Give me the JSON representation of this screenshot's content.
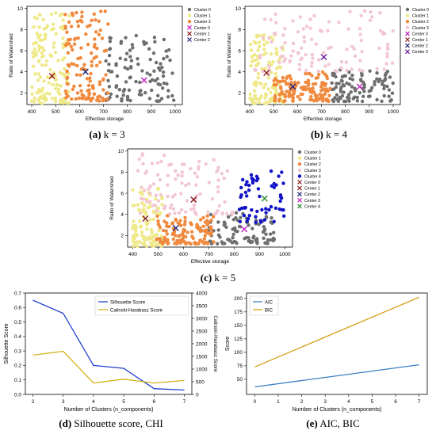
{
  "captions": [
    {
      "letter": "(a)",
      "text": " k = 3"
    },
    {
      "letter": "(b)",
      "text": " k = 4"
    },
    {
      "letter": "(c)",
      "text": " k = 5"
    },
    {
      "letter": "(d)",
      "text": " Silhouette score, CHI"
    },
    {
      "letter": "(e)",
      "text": " AIC, BIC"
    }
  ],
  "colors": {
    "cluster_grey": "#6e6e6e",
    "cluster_yellow": "#efe98a",
    "cluster_orange": "#f08a3e",
    "cluster_pink": "#f2c7d3",
    "cluster_blue": "#1212c8",
    "center_magenta": "#c21fc2",
    "center_brown": "#8b1a1a",
    "center_purple": "#6a1a9a",
    "center_navy": "#22227a",
    "center_green": "#2a8a2a",
    "line_blue": "#1f3fd0",
    "line_gold": "#d4b21c",
    "aic_blue": "#3a7fc4",
    "bic_gold": "#d4a017"
  },
  "chart_data": [
    {
      "id": "k3",
      "type": "scatter",
      "xlabel": "Effective storage",
      "ylabel": "Ratio of Watershed",
      "xlim": [
        380,
        1030
      ],
      "ylim": [
        0.9,
        10.2
      ],
      "xticks": [
        400,
        500,
        600,
        700,
        800,
        900,
        1000
      ],
      "yticks": [
        2,
        4,
        6,
        8,
        10
      ],
      "legend": [
        "Cluster 0",
        "Cluster 1",
        "Cluster 2",
        "Center 0",
        "Center 1",
        "Center 2"
      ],
      "legend_position": "right",
      "clusters": [
        {
          "name": "Cluster 0",
          "color": "cluster_grey",
          "xr": [
            700,
            1000
          ],
          "yr": [
            1.2,
            7.5
          ],
          "n": 110,
          "seed": 11
        },
        {
          "name": "Cluster 1",
          "color": "cluster_yellow",
          "xr": [
            400,
            560
          ],
          "yr": [
            1.0,
            9.6
          ],
          "n": 150,
          "seed": 12
        },
        {
          "name": "Cluster 2",
          "color": "cluster_orange",
          "xr": [
            540,
            720
          ],
          "yr": [
            1.2,
            9.8
          ],
          "n": 130,
          "seed": 13
        }
      ],
      "centers": [
        {
          "name": "Center 0",
          "x": 870,
          "y": 3.2,
          "color": "center_magenta"
        },
        {
          "name": "Center 1",
          "x": 485,
          "y": 3.6,
          "color": "center_brown"
        },
        {
          "name": "Center 2",
          "x": 625,
          "y": 4.0,
          "color": "center_navy"
        }
      ]
    },
    {
      "id": "k4",
      "type": "scatter",
      "xlabel": "Effective storage",
      "ylabel": "Ratio of Watershed",
      "xlim": [
        380,
        1030
      ],
      "ylim": [
        0.9,
        10.2
      ],
      "xticks": [
        400,
        500,
        600,
        700,
        800,
        900,
        1000
      ],
      "yticks": [
        2,
        4,
        6,
        8,
        10
      ],
      "legend": [
        "Cluster 0",
        "Cluster 1",
        "Cluster 2",
        "Cluster 3",
        "Center 0",
        "Center 1",
        "Center 2",
        "Center 3"
      ],
      "legend_position": "right",
      "clusters": [
        {
          "name": "Cluster 0",
          "color": "cluster_grey",
          "xr": [
            740,
            1000
          ],
          "yr": [
            1.2,
            4.2
          ],
          "n": 100,
          "seed": 21
        },
        {
          "name": "Cluster 1",
          "color": "cluster_yellow",
          "xr": [
            400,
            540
          ],
          "yr": [
            1.0,
            7.5
          ],
          "n": 120,
          "seed": 22
        },
        {
          "name": "Cluster 2",
          "color": "cluster_orange",
          "xr": [
            500,
            740
          ],
          "yr": [
            1.2,
            4.0
          ],
          "n": 130,
          "seed": 23
        },
        {
          "name": "Cluster 3",
          "color": "cluster_pink",
          "xr": [
            420,
            1000
          ],
          "yr": [
            4.0,
            9.8
          ],
          "n": 110,
          "seed": 24
        }
      ],
      "centers": [
        {
          "name": "Center 0",
          "x": 860,
          "y": 2.6,
          "color": "center_magenta"
        },
        {
          "name": "Center 1",
          "x": 470,
          "y": 3.9,
          "color": "center_brown"
        },
        {
          "name": "Center 2",
          "x": 580,
          "y": 2.6,
          "color": "center_navy"
        },
        {
          "name": "Center 3",
          "x": 710,
          "y": 5.4,
          "color": "center_purple"
        }
      ]
    },
    {
      "id": "k5",
      "type": "scatter",
      "xlabel": "Effective storage",
      "ylabel": "Ratio of Watershed",
      "xlim": [
        380,
        1030
      ],
      "ylim": [
        0.9,
        10.2
      ],
      "xticks": [
        400,
        500,
        600,
        700,
        800,
        900,
        1000
      ],
      "yticks": [
        2,
        4,
        6,
        8,
        10
      ],
      "legend": [
        "Cluster 0",
        "Cluster 1",
        "Cluster 2",
        "Cluster 3",
        "Cluster 4",
        "Center 0",
        "Center 1",
        "Center 2",
        "Center 3",
        "Center 4"
      ],
      "legend_position": "right",
      "clusters": [
        {
          "name": "Cluster 0",
          "color": "cluster_grey",
          "xr": [
            700,
            960
          ],
          "yr": [
            1.2,
            4.2
          ],
          "n": 95,
          "seed": 31
        },
        {
          "name": "Cluster 1",
          "color": "cluster_yellow",
          "xr": [
            400,
            520
          ],
          "yr": [
            1.0,
            6.5
          ],
          "n": 110,
          "seed": 32
        },
        {
          "name": "Cluster 2",
          "color": "cluster_orange",
          "xr": [
            490,
            720
          ],
          "yr": [
            1.2,
            4.0
          ],
          "n": 130,
          "seed": 33
        },
        {
          "name": "Cluster 3",
          "color": "cluster_pink",
          "xr": [
            420,
            800
          ],
          "yr": [
            4.0,
            9.8
          ],
          "n": 100,
          "seed": 34
        },
        {
          "name": "Cluster 4",
          "color": "cluster_blue",
          "xr": [
            820,
            1000
          ],
          "yr": [
            3.2,
            8.2
          ],
          "n": 60,
          "seed": 35
        }
      ],
      "centers": [
        {
          "name": "Center 0",
          "x": 450,
          "y": 3.6,
          "color": "center_brown"
        },
        {
          "name": "Center 1",
          "x": 640,
          "y": 5.4,
          "color": "center_brown"
        },
        {
          "name": "Center 2",
          "x": 570,
          "y": 2.7,
          "color": "center_navy"
        },
        {
          "name": "Center 3",
          "x": 840,
          "y": 2.6,
          "color": "center_magenta"
        },
        {
          "name": "Center 4",
          "x": 920,
          "y": 5.5,
          "color": "center_green"
        }
      ]
    },
    {
      "id": "silhouette",
      "type": "line",
      "xlabel": "Number of Clusters (n_components)",
      "ylabel": "Silhouette Score",
      "y2label": "Calinski-Harabasz Score",
      "x": [
        2,
        3,
        4,
        5,
        6,
        7
      ],
      "xticks": [
        2,
        3,
        4,
        5,
        6,
        7
      ],
      "ylim": [
        0,
        0.7
      ],
      "yticks": [
        0.0,
        0.1,
        0.2,
        0.3,
        0.4,
        0.5,
        0.6,
        0.7
      ],
      "y2lim": [
        0,
        4000
      ],
      "y2ticks": [
        0,
        500,
        1000,
        1500,
        2000,
        2500,
        3000,
        3500,
        4000
      ],
      "legend_position": "top-right",
      "series": [
        {
          "name": "Silhouette Score",
          "axis": "left",
          "color": "line_blue",
          "values": [
            0.65,
            0.56,
            0.2,
            0.18,
            0.04,
            0.03
          ]
        },
        {
          "name": "Calinski-Harabasz Score",
          "axis": "right",
          "color": "line_gold",
          "values": [
            1550,
            1700,
            450,
            600,
            450,
            550
          ]
        }
      ]
    },
    {
      "id": "aicbic",
      "type": "line",
      "xlabel": "Number of Clusters (n_components)",
      "ylabel": "Score",
      "x": [
        0,
        7
      ],
      "xticks": [
        0,
        1,
        2,
        3,
        4,
        5,
        6,
        7
      ],
      "ylim": [
        22,
        210
      ],
      "yticks": [
        50,
        75,
        100,
        125,
        150,
        175,
        200
      ],
      "legend_position": "top-left",
      "series": [
        {
          "name": "AIC",
          "color": "aic_blue",
          "values": [
            36,
            77
          ]
        },
        {
          "name": "BIC",
          "color": "bic_gold",
          "values": [
            73,
            202
          ]
        }
      ]
    }
  ]
}
